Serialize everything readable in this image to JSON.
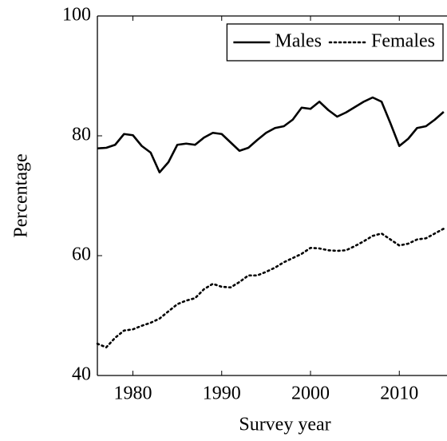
{
  "chart_data": {
    "type": "line",
    "x_label": "Survey year",
    "y_label": "Percentage",
    "x": [
      1976,
      1977,
      1978,
      1979,
      1980,
      1981,
      1982,
      1983,
      1984,
      1985,
      1986,
      1987,
      1988,
      1989,
      1990,
      1991,
      1992,
      1993,
      1994,
      1995,
      1996,
      1997,
      1998,
      1999,
      2000,
      2001,
      2002,
      2003,
      2004,
      2005,
      2006,
      2007,
      2008,
      2009,
      2010,
      2011,
      2012,
      2013,
      2014,
      2015
    ],
    "series": [
      {
        "name": "Males",
        "color": "#000000",
        "dash": "solid",
        "values": [
          77.9,
          78.0,
          78.5,
          80.3,
          80.1,
          78.3,
          77.2,
          73.9,
          75.6,
          78.5,
          78.7,
          78.5,
          79.7,
          80.5,
          80.3,
          78.9,
          77.5,
          78.0,
          79.3,
          80.5,
          81.3,
          81.6,
          82.7,
          84.7,
          84.5,
          85.7,
          84.3,
          83.2,
          83.9,
          84.8,
          85.7,
          86.4,
          85.7,
          82.1,
          78.3,
          79.5,
          81.3,
          81.6,
          82.7,
          84.0
        ]
      },
      {
        "name": "Females",
        "color": "#000000",
        "dash": "dotted",
        "values": [
          45.3,
          44.7,
          46.3,
          47.5,
          47.7,
          48.3,
          48.8,
          49.5,
          50.7,
          51.9,
          52.5,
          52.9,
          54.4,
          55.3,
          54.8,
          54.7,
          55.6,
          56.7,
          56.7,
          57.3,
          58.0,
          58.9,
          59.6,
          60.3,
          61.3,
          61.2,
          60.9,
          60.8,
          60.9,
          61.6,
          62.4,
          63.3,
          63.7,
          62.7,
          61.7,
          62.0,
          62.7,
          62.9,
          63.7,
          64.5
        ]
      }
    ],
    "xlim": [
      1976,
      2016
    ],
    "xticks": [
      1980,
      1990,
      2000,
      2010
    ],
    "ylim": [
      40,
      100
    ],
    "yticks": [
      40,
      60,
      80,
      100
    ],
    "legend": "top-right"
  }
}
